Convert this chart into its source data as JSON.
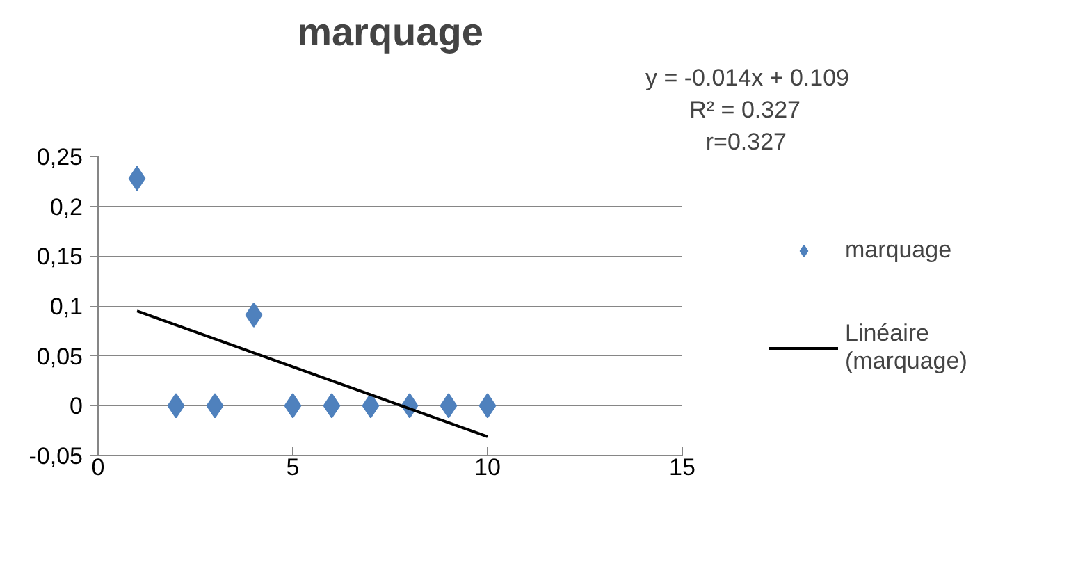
{
  "chart_data": {
    "type": "scatter",
    "title": "marquage",
    "x": [
      1,
      2,
      3,
      4,
      5,
      6,
      7,
      8,
      9,
      10
    ],
    "series": [
      {
        "name": "marquage",
        "color": "#4f81bd",
        "values": [
          0.228,
          0,
          0,
          0.091,
          0,
          0,
          0,
          0,
          0,
          0
        ],
        "marker": "diamond"
      },
      {
        "name": "Linéaire (marquage)",
        "type": "line",
        "color": "#000000",
        "x": [
          1,
          10
        ],
        "values": [
          0.095,
          -0.031
        ],
        "marker": "none"
      }
    ],
    "annotations": [
      "y = -0.014x + 0.109",
      "R² = 0.327",
      "r=0.327"
    ],
    "xlim": [
      0,
      15
    ],
    "xticks": [
      0,
      5,
      10,
      15
    ],
    "ylim": [
      -0.05,
      0.25
    ],
    "yticks": [
      {
        "value": -0.05,
        "label": "-0,05"
      },
      0,
      {
        "value": 0.05,
        "label": "0,05"
      },
      {
        "value": 0.1,
        "label": "0,1"
      },
      {
        "value": 0.15,
        "label": "0,15"
      },
      {
        "value": 0.2,
        "label": "0,2"
      },
      {
        "value": 0.25,
        "label": "0,25"
      }
    ],
    "grid": "y",
    "legend": "right"
  }
}
